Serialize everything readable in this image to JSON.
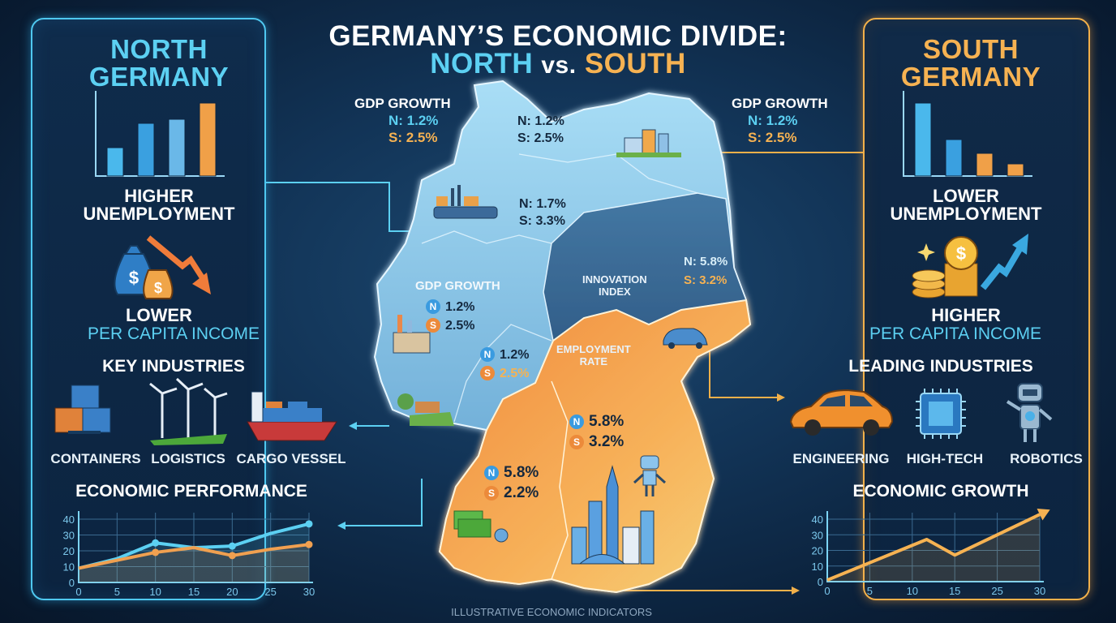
{
  "title": {
    "line1": "GERMANY’S ECONOMIC DIVIDE:",
    "north": "NORTH",
    "vs": "vs.",
    "south": "SOUTH"
  },
  "left_panel": {
    "heading_line1": "NORTH",
    "heading_line2": "GERMANY",
    "bar_values": [
      3.5,
      6.5,
      7,
      9
    ],
    "unemployment_line1": "HIGHER",
    "unemployment_line2": "UNEMPLOYMENT",
    "income_line1": "LOWER",
    "income_line2": "PER CAPITA INCOME",
    "money_bag_symbol": "$",
    "industries_title": "KEY INDUSTRIES",
    "industries": [
      {
        "label": "CONTAINERS",
        "icon": "containers-icon"
      },
      {
        "label": "LOGISTICS",
        "icon": "wind-turbines-icon"
      },
      {
        "label": "CARGO VESSEL",
        "icon": "cargo-ship-icon"
      }
    ],
    "chart_title": "ECONOMIC PERFORMANCE"
  },
  "right_panel": {
    "heading_line1": "SOUTH",
    "heading_line2": "GERMANY",
    "bar_values": [
      9,
      4.5,
      2.8,
      1.5
    ],
    "unemployment_line1": "LOWER",
    "unemployment_line2": "UNEMPLOYMENT",
    "income_line1": "HIGHER",
    "income_line2": "PER CAPITA INCOME",
    "coin_symbol": "$",
    "industries_title": "LEADING INDUSTRIES",
    "industries": [
      {
        "label": "ENGINEERING",
        "icon": "car-icon"
      },
      {
        "label": "HIGH-TECH",
        "icon": "chip-icon"
      },
      {
        "label": "ROBOTICS",
        "icon": "robot-icon"
      }
    ],
    "chart_title": "ECONOMIC GROWTH"
  },
  "map": {
    "gdp_left": {
      "title": "GDP GROWTH",
      "n": "N: 1.2%",
      "s": "S: 2.5%"
    },
    "gdp_right": {
      "title": "GDP GROWTH",
      "n": "N: 1.2%",
      "s": "S: 2.5%"
    },
    "north_coast": {
      "n": "N: 1.2%",
      "s": "S: 2.5%"
    },
    "north_mid": {
      "n": "N: 1.7%",
      "s": "S: 3.3%"
    },
    "east": {
      "n": "N: 5.8%",
      "s": "S: 3.2%"
    },
    "innovation": {
      "line1": "INNOVATION",
      "line2": "INDEX"
    },
    "gdp_west": {
      "title": "GDP GROWTH",
      "n": "1.2%",
      "s": "2.5%"
    },
    "west_mid": {
      "n": "1.2%",
      "s": "2.5%"
    },
    "employment": {
      "line1": "EMPLOYMENT",
      "line2": "RATE"
    },
    "bavaria": {
      "n": "5.8%",
      "s": "3.2%"
    },
    "bw": {
      "n": "5.8%",
      "s": "2.2%"
    },
    "badge_n": "N",
    "badge_s": "S"
  },
  "footer": "ILLUSTRATIVE ECONOMIC INDICATORS",
  "colors": {
    "north": "#5cd0f2",
    "south": "#f6b252",
    "bg": "#0f2c4c"
  },
  "chart_data": [
    {
      "type": "line",
      "title": "ECONOMIC PERFORMANCE",
      "x": [
        0,
        5,
        10,
        15,
        20,
        25,
        30
      ],
      "xticks": [
        "0",
        "5",
        "10",
        "15",
        "20",
        "25",
        "30"
      ],
      "yticks": [
        "0",
        "10",
        "20",
        "30",
        "40"
      ],
      "ylim": [
        0,
        40
      ],
      "xlim": [
        0,
        30
      ],
      "grid": true,
      "series": [
        {
          "name": "north",
          "color": "#5cd0f2",
          "values": [
            9,
            15,
            25,
            22,
            23,
            31,
            37
          ]
        },
        {
          "name": "south",
          "color": "#f0a050",
          "values": [
            9,
            14,
            19,
            22,
            17,
            21,
            24
          ]
        }
      ]
    },
    {
      "type": "line",
      "title": "ECONOMIC GROWTH",
      "xticks": [
        "0",
        "5",
        "10",
        "15",
        "25",
        "30"
      ],
      "yticks": [
        "0",
        "10",
        "20",
        "30",
        "40"
      ],
      "ylim": [
        0,
        40
      ],
      "grid": true,
      "series": [
        {
          "name": "growth",
          "color": "#f6b252",
          "x": [
            0,
            11.7,
            15,
            30
          ],
          "values": [
            1,
            27,
            17,
            43
          ]
        }
      ]
    }
  ]
}
